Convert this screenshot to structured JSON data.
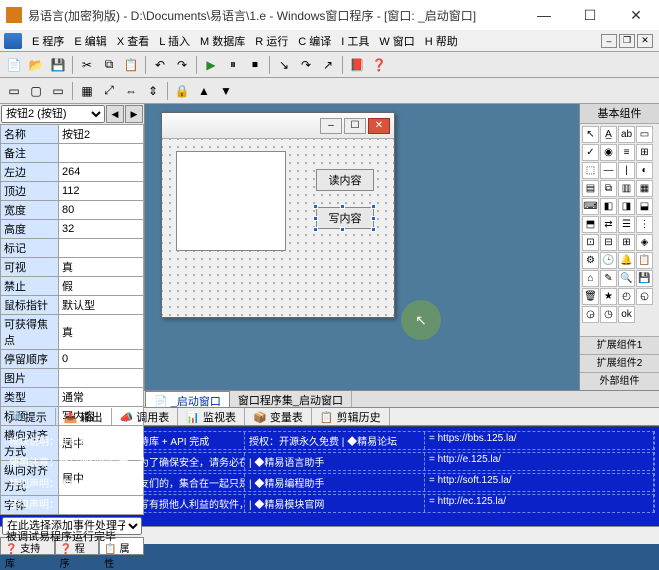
{
  "colors": {
    "accent": "#2a64c8",
    "design_bg": "#4e7a9c",
    "output_bg": "#0a22c8",
    "highlight": "#7aa646"
  },
  "window": {
    "title": "易语言(加密狗版) - D:\\Documents\\易语言\\1.e - Windows窗口程序 - [窗口: _启动窗口]",
    "min": "—",
    "max": "☐",
    "close": "✕"
  },
  "menu": [
    "E 程序",
    "E 编辑",
    "X 查看",
    "L 插入",
    "M 数据库",
    "R 运行",
    "C 编译",
    "I 工具",
    "W 窗口",
    "H 帮助"
  ],
  "props": {
    "selector": "按钮2 (按钮)",
    "rows": [
      [
        "名称",
        "按钮2"
      ],
      [
        "备注",
        ""
      ],
      [
        "左边",
        "264"
      ],
      [
        "顶边",
        "112"
      ],
      [
        "宽度",
        "80"
      ],
      [
        "高度",
        "32"
      ],
      [
        "标记",
        ""
      ],
      [
        "可视",
        "真"
      ],
      [
        "禁止",
        "假"
      ],
      [
        "鼠标指针",
        "默认型"
      ],
      [
        "可获得焦点",
        "真"
      ],
      [
        "停留顺序",
        "0"
      ],
      [
        "图片",
        ""
      ],
      [
        "类型",
        "通常"
      ],
      [
        "标题",
        "写内容"
      ],
      [
        "横向对齐方式",
        "居中"
      ],
      [
        "纵向对齐方式",
        "居中"
      ],
      [
        "字体",
        ""
      ]
    ],
    "bottom_sel": "在此选择添加事件处理子程序",
    "tabs": [
      "❓ 支持库",
      "❓ 程序",
      "📋 属性"
    ]
  },
  "form": {
    "btn1": "读内容",
    "btn2": "写内容"
  },
  "comps_header": "基本组件",
  "ext": [
    "扩展组件1",
    "扩展组件2",
    "外部组件"
  ],
  "midtabs": [
    "📄 _启动窗口",
    "窗口程序集_启动窗口"
  ],
  "assist": [
    "🔎 提示",
    "📤 输出",
    "📣 调用表",
    "📊 监视表",
    "📦 变量表",
    "📋 剪辑历史"
  ],
  "output_rows": [
    [
      "模块说明：使用易语言核心支持库 + API 完成",
      "授权：开源永久免费 | ◆精易论坛",
      "= https://bbs.125.la/"
    ],
    [
      "使用注意：精易模块纯绿色，为了确保安全，请务必在【精易论坛】下载",
      "| ◆精易语言助手",
      "= http://e.125.la/"
    ],
    [
      "特别声明：部分代码是取自朋友们的，集合在一起只是方便大家使用",
      "| ◆精易编程助手",
      "= http://soft.125.la/"
    ],
    [
      "使用声明：请勿使用本模块编写有损他人利益的软件，造成的后果全部自负",
      "| ◆精易模块官网",
      "= http://ec.125.la/"
    ]
  ],
  "status": "被调试易程序运行完毕"
}
